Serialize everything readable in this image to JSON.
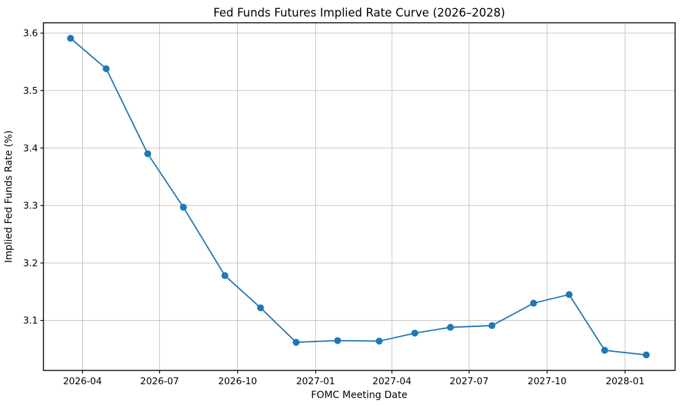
{
  "chart_data": {
    "type": "line",
    "title": "Fed Funds Futures Implied Rate Curve (2026–2028)",
    "xlabel": "FOMC Meeting Date",
    "ylabel": "Implied Fed Funds Rate (%)",
    "series": [
      {
        "name": "implied_fed_funds_rate",
        "x": [
          "2026-03-18",
          "2026-04-29",
          "2026-06-17",
          "2026-07-29",
          "2026-09-16",
          "2026-10-28",
          "2026-12-09",
          "2027-01-27",
          "2027-03-17",
          "2027-04-28",
          "2027-06-09",
          "2027-07-28",
          "2027-09-15",
          "2027-10-27",
          "2027-12-08",
          "2028-01-26"
        ],
        "values": [
          3.591,
          3.538,
          3.39,
          3.297,
          3.178,
          3.122,
          3.062,
          3.065,
          3.064,
          3.078,
          3.088,
          3.091,
          3.13,
          3.145,
          3.048,
          3.04
        ]
      }
    ],
    "x_ticks": [
      {
        "date": "2026-04-01",
        "label": "2026-04"
      },
      {
        "date": "2026-07-01",
        "label": "2026-07"
      },
      {
        "date": "2026-10-01",
        "label": "2026-10"
      },
      {
        "date": "2027-01-01",
        "label": "2027-01"
      },
      {
        "date": "2027-04-01",
        "label": "2027-04"
      },
      {
        "date": "2027-07-01",
        "label": "2027-07"
      },
      {
        "date": "2027-10-01",
        "label": "2027-10"
      },
      {
        "date": "2028-01-01",
        "label": "2028-01"
      }
    ],
    "y_ticks": [
      {
        "value": 3.6,
        "label": "3.6"
      },
      {
        "value": 3.5,
        "label": "3.5"
      },
      {
        "value": 3.4,
        "label": "3.4"
      },
      {
        "value": 3.3,
        "label": "3.3"
      },
      {
        "value": 3.2,
        "label": "3.2"
      },
      {
        "value": 3.1,
        "label": "3.1"
      }
    ],
    "xlim": [
      "2026-02-14",
      "2028-02-29"
    ],
    "ylim": [
      3.013,
      3.618
    ],
    "grid": true,
    "legend_position": "none",
    "line_color": "#1f77b4",
    "marker": "circle",
    "grid_color": "#c4c4c4",
    "spine_color": "#000000",
    "background_color": "#ffffff"
  }
}
